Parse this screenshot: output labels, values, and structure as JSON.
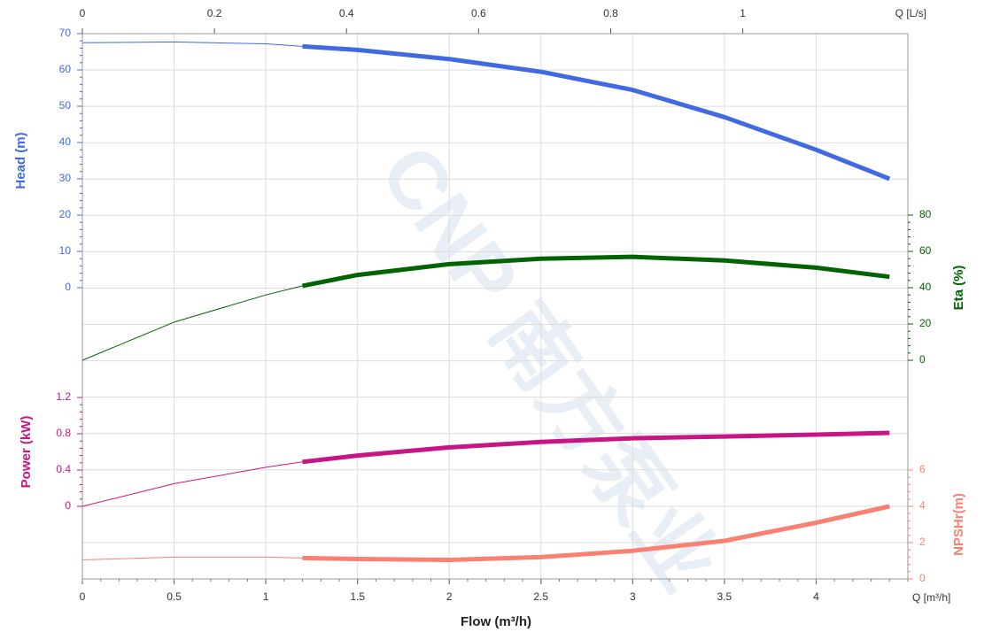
{
  "chart_data": {
    "type": "line",
    "x_label": "Flow (m³/h)",
    "x_unit_label": "Q [m³/h]",
    "x2_unit_label": "Q [L/s]",
    "watermark": "CNP 南方泵业",
    "x": [
      0,
      0.5,
      1,
      1.2,
      1.5,
      2,
      2.5,
      3,
      3.5,
      4,
      4.4
    ],
    "xlim": [
      0,
      4.5
    ],
    "xticks": [
      0,
      0.5,
      1,
      1.5,
      2,
      2.5,
      3,
      3.5,
      4
    ],
    "x2lim": [
      0,
      1.25
    ],
    "x2ticks": [
      0,
      0.2,
      0.4,
      0.6,
      0.8,
      1
    ],
    "operating_range_start": 1.2,
    "grid": true,
    "series": [
      {
        "name": "Head (m)",
        "color": "#4169e1",
        "values": [
          67.5,
          67.7,
          67.2,
          66.5,
          65.5,
          63,
          59.5,
          54.5,
          47,
          38,
          30
        ],
        "ylim": [
          0,
          70
        ],
        "yticks": [
          0,
          10,
          20,
          30,
          40,
          50,
          60,
          70
        ]
      },
      {
        "name": "Eta (%)",
        "color": "#006400",
        "values": [
          0,
          21,
          36,
          41,
          47,
          53,
          56,
          57,
          55,
          51,
          46
        ],
        "ylim": [
          0,
          80
        ],
        "yticks": [
          0,
          20,
          40,
          60,
          80
        ]
      },
      {
        "name": "Power (kW)",
        "color": "#c71585",
        "values": [
          0,
          0.25,
          0.43,
          0.49,
          0.56,
          0.65,
          0.71,
          0.75,
          0.77,
          0.79,
          0.81
        ],
        "ylim": [
          0,
          1.2
        ],
        "yticks": [
          0,
          0.4,
          0.8,
          1.2
        ]
      },
      {
        "name": "NPSHr(m)",
        "color": "#fa8072",
        "values": [
          1.05,
          1.2,
          1.2,
          1.15,
          1.1,
          1.05,
          1.2,
          1.55,
          2.1,
          3.1,
          4
        ],
        "ylim": [
          0,
          6
        ],
        "yticks": [
          0,
          2,
          4,
          6
        ]
      }
    ]
  }
}
